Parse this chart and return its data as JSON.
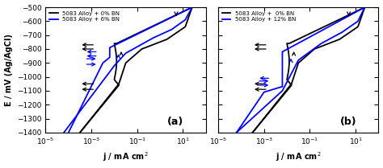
{
  "panel_a": {
    "label": "(a)",
    "legend": [
      "5083 Alloy + 0% BN",
      "5083 Alloy + 6% BN"
    ],
    "colors": [
      "black",
      "blue"
    ]
  },
  "panel_b": {
    "label": "(b)",
    "legend": [
      "5083 Alloy +  0% BN",
      "5083 Alloy + 12% BN"
    ],
    "colors": [
      "black",
      "blue"
    ]
  },
  "xlim_log": [
    -5,
    2
  ],
  "ylim": [
    -1400,
    -500
  ],
  "yticks": [
    -1400,
    -1300,
    -1200,
    -1100,
    -1000,
    -900,
    -800,
    -700,
    -600,
    -500
  ],
  "xlabel": "j / mA cm$^{2}$",
  "ylabel": "E / mV (Ag/AgCl)"
}
